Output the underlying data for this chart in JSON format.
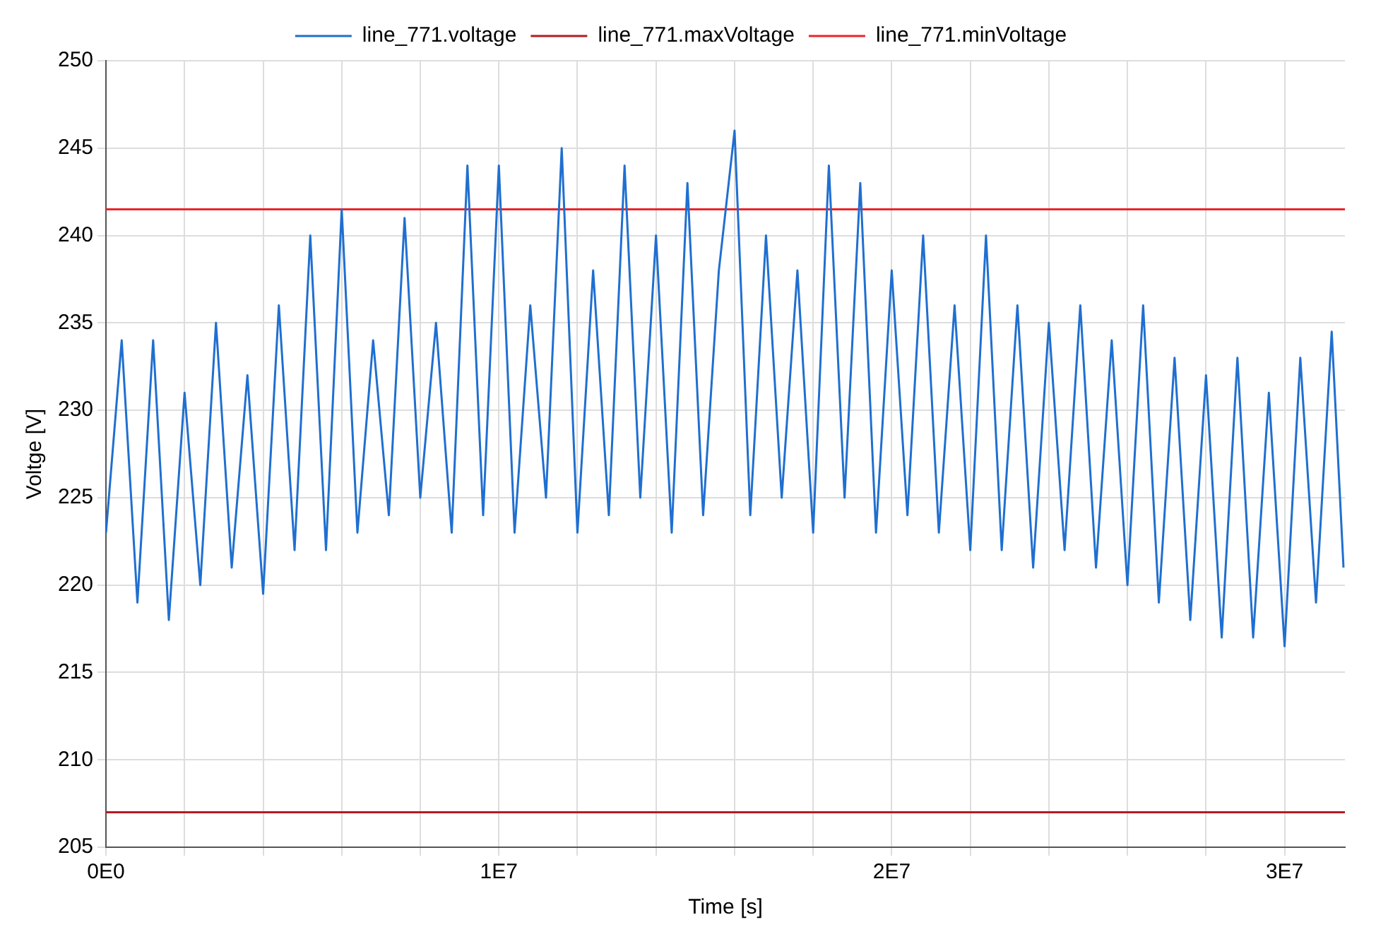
{
  "chart_data": {
    "type": "line",
    "xlabel": "Time [s]",
    "ylabel": "Voltge [V]",
    "xlim": [
      0,
      31536000
    ],
    "ylim": [
      205,
      250
    ],
    "xticks": [
      {
        "value": 0,
        "label": "0E0"
      },
      {
        "value": 2000000,
        "label": null
      },
      {
        "value": 4000000,
        "label": null
      },
      {
        "value": 6000000,
        "label": null
      },
      {
        "value": 8000000,
        "label": null
      },
      {
        "value": 10000000,
        "label": "1E7"
      },
      {
        "value": 12000000,
        "label": null
      },
      {
        "value": 14000000,
        "label": null
      },
      {
        "value": 16000000,
        "label": null
      },
      {
        "value": 18000000,
        "label": null
      },
      {
        "value": 20000000,
        "label": "2E7"
      },
      {
        "value": 22000000,
        "label": null
      },
      {
        "value": 24000000,
        "label": null
      },
      {
        "value": 26000000,
        "label": null
      },
      {
        "value": 28000000,
        "label": null
      },
      {
        "value": 30000000,
        "label": "3E7"
      }
    ],
    "yticks": [
      205,
      210,
      215,
      220,
      225,
      230,
      235,
      240,
      245,
      250
    ],
    "grid": true,
    "legend": "top",
    "marker": "none",
    "line_style": "solid",
    "series": [
      {
        "name": "line_771.voltage",
        "color": "#1f6fd0",
        "x": [
          0,
          400000,
          800000,
          1200000,
          1600000,
          2000000,
          2400000,
          2800000,
          3200000,
          3600000,
          4000000,
          4400000,
          4800000,
          5200000,
          5600000,
          6000000,
          6400000,
          6800000,
          7200000,
          7600000,
          8000000,
          8400000,
          8800000,
          9200000,
          9600000,
          10000000,
          10400000,
          10800000,
          11200000,
          11600000,
          12000000,
          12400000,
          12800000,
          13200000,
          13600000,
          14000000,
          14400000,
          14800000,
          15200000,
          15600000,
          16000000,
          16400000,
          16800000,
          17200000,
          17600000,
          18000000,
          18400000,
          18800000,
          19200000,
          19600000,
          20000000,
          20400000,
          20800000,
          21200000,
          21600000,
          22000000,
          22400000,
          22800000,
          23200000,
          23600000,
          24000000,
          24400000,
          24800000,
          25200000,
          25600000,
          26000000,
          26400000,
          26800000,
          27200000,
          27600000,
          28000000,
          28400000,
          28800000,
          29200000,
          29600000,
          30000000,
          30400000,
          30800000,
          31200000,
          31500000
        ],
        "values": [
          223,
          234,
          219,
          234,
          218,
          231,
          220,
          235,
          221,
          232,
          219.5,
          236,
          222,
          240,
          222,
          241.5,
          223,
          234,
          224,
          241,
          225,
          235,
          223,
          244,
          224,
          244,
          223,
          236,
          225,
          245,
          223,
          238,
          224,
          244,
          225,
          240,
          223,
          243,
          224,
          238,
          246,
          224,
          240,
          225,
          238,
          223,
          244,
          225,
          243,
          223,
          238,
          224,
          240,
          223,
          236,
          222,
          240,
          222,
          236,
          221,
          235,
          222,
          236,
          221,
          234,
          220,
          236,
          219,
          233,
          218,
          232,
          217,
          233,
          217,
          231,
          216.5,
          233,
          219,
          234.5,
          221
        ]
      },
      {
        "name": "line_771.maxVoltage",
        "color": "#b01c24",
        "x": [
          0,
          31536000
        ],
        "values": [
          207,
          207
        ]
      },
      {
        "name": "line_771.minVoltage",
        "color": "#e8262a",
        "x": [
          0,
          31536000
        ],
        "values": [
          241.5,
          241.5
        ]
      }
    ]
  }
}
